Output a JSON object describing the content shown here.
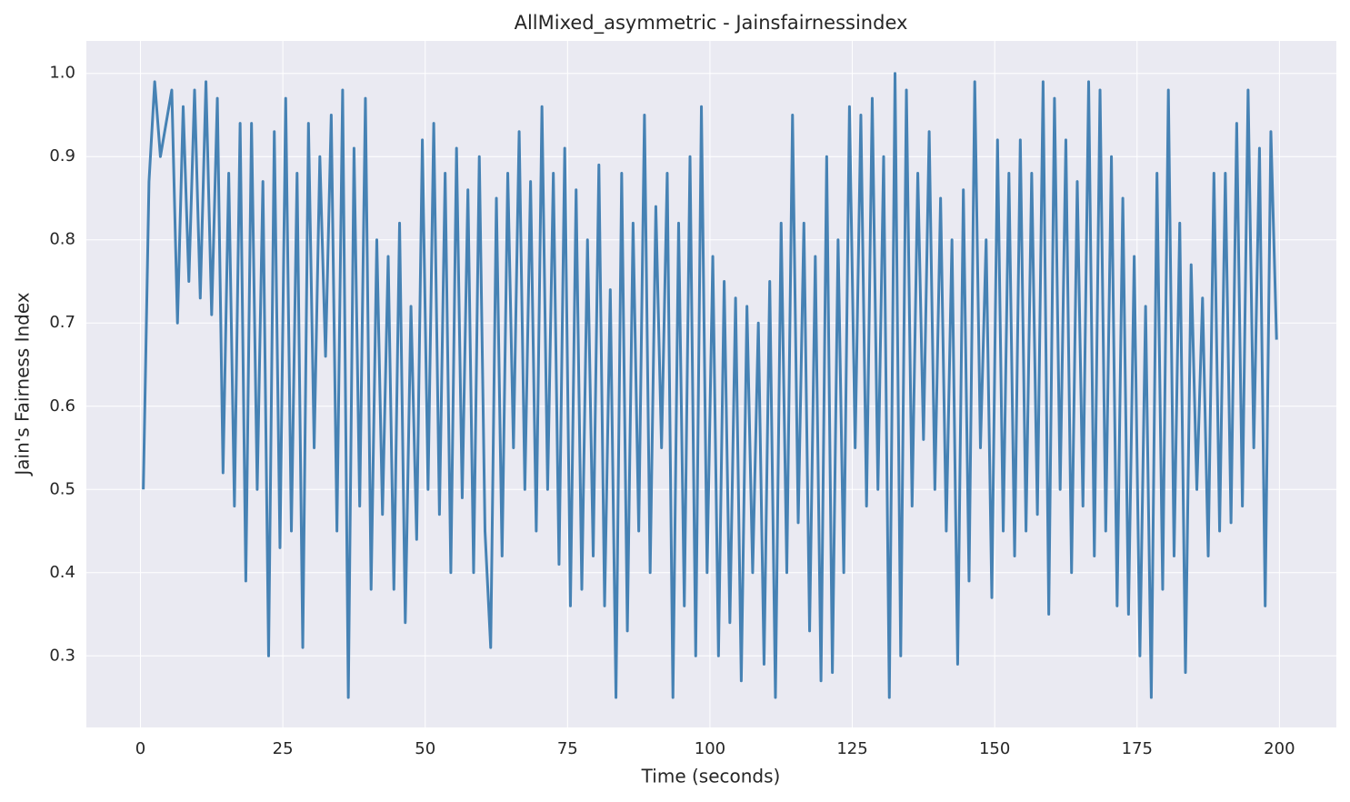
{
  "chart_data": {
    "type": "line",
    "title": "AllMixed_asymmetric - Jainsfairnessindex",
    "x_label": "Time (seconds)",
    "y_label": "Jain's Fairness Index",
    "color": "#4682b4",
    "grid": true,
    "xlim": [
      -9.5,
      210
    ],
    "ylim": [
      0.214,
      1.039
    ],
    "xticks": [
      0,
      25,
      50,
      75,
      100,
      125,
      150,
      175,
      200
    ],
    "yticks": [
      0.3,
      0.4,
      0.5,
      0.6,
      0.7,
      0.8,
      0.9,
      {
        "value": 1,
        "label": "1.0"
      }
    ],
    "x": [
      0.5,
      1.5,
      2.5,
      3.5,
      4.5,
      5.5,
      6.5,
      7.5,
      8.5,
      9.5,
      10.5,
      11.5,
      12.5,
      13.5,
      14.5,
      15.5,
      16.5,
      17.5,
      18.5,
      19.5,
      20.5,
      21.5,
      22.5,
      23.5,
      24.5,
      25.5,
      26.5,
      27.5,
      28.5,
      29.5,
      30.5,
      31.5,
      32.5,
      33.5,
      34.5,
      35.5,
      36.5,
      37.5,
      38.5,
      39.5,
      40.5,
      41.5,
      42.5,
      43.5,
      44.5,
      45.5,
      46.5,
      47.5,
      48.5,
      49.5,
      50.5,
      51.5,
      52.5,
      53.5,
      54.5,
      55.5,
      56.5,
      57.5,
      58.5,
      59.5,
      60.5,
      61.5,
      62.5,
      63.5,
      64.5,
      65.5,
      66.5,
      67.5,
      68.5,
      69.5,
      70.5,
      71.5,
      72.5,
      73.5,
      74.5,
      75.5,
      76.5,
      77.5,
      78.5,
      79.5,
      80.5,
      81.5,
      82.5,
      83.5,
      84.5,
      85.5,
      86.5,
      87.5,
      88.5,
      89.5,
      90.5,
      91.5,
      92.5,
      93.5,
      94.5,
      95.5,
      96.5,
      97.5,
      98.5,
      99.5,
      100.5,
      101.5,
      102.5,
      103.5,
      104.5,
      105.5,
      106.5,
      107.5,
      108.5,
      109.5,
      110.5,
      111.5,
      112.5,
      113.5,
      114.5,
      115.5,
      116.5,
      117.5,
      118.5,
      119.5,
      120.5,
      121.5,
      122.5,
      123.5,
      124.5,
      125.5,
      126.5,
      127.5,
      128.5,
      129.5,
      130.5,
      131.5,
      132.5,
      133.5,
      134.5,
      135.5,
      136.5,
      137.5,
      138.5,
      139.5,
      140.5,
      141.5,
      142.5,
      143.5,
      144.5,
      145.5,
      146.5,
      147.5,
      148.5,
      149.5,
      150.5,
      151.5,
      152.5,
      153.5,
      154.5,
      155.5,
      156.5,
      157.5,
      158.5,
      159.5,
      160.5,
      161.5,
      162.5,
      163.5,
      164.5,
      165.5,
      166.5,
      167.5,
      168.5,
      169.5,
      170.5,
      171.5,
      172.5,
      173.5,
      174.5,
      175.5,
      176.5,
      177.5,
      178.5,
      179.5,
      180.5,
      181.5,
      182.5,
      183.5,
      184.5,
      185.5,
      186.5,
      187.5,
      188.5,
      189.5,
      190.5,
      191.5,
      192.5,
      193.5,
      194.5,
      195.5,
      196.5,
      197.5,
      198.5,
      199.5
    ],
    "values": [
      0.5,
      0.87,
      0.99,
      0.9,
      0.94,
      0.98,
      0.7,
      0.96,
      0.75,
      0.98,
      0.73,
      0.99,
      0.71,
      0.97,
      0.52,
      0.88,
      0.48,
      0.94,
      0.39,
      0.94,
      0.5,
      0.87,
      0.3,
      0.93,
      0.43,
      0.97,
      0.45,
      0.88,
      0.31,
      0.94,
      0.55,
      0.9,
      0.66,
      0.95,
      0.45,
      0.98,
      0.25,
      0.91,
      0.48,
      0.97,
      0.38,
      0.8,
      0.47,
      0.78,
      0.38,
      0.82,
      0.34,
      0.72,
      0.44,
      0.92,
      0.5,
      0.94,
      0.47,
      0.88,
      0.4,
      0.91,
      0.49,
      0.86,
      0.4,
      0.9,
      0.45,
      0.31,
      0.85,
      0.42,
      0.88,
      0.55,
      0.93,
      0.5,
      0.87,
      0.45,
      0.96,
      0.5,
      0.88,
      0.41,
      0.91,
      0.36,
      0.86,
      0.38,
      0.8,
      0.42,
      0.89,
      0.36,
      0.74,
      0.25,
      0.88,
      0.33,
      0.82,
      0.45,
      0.95,
      0.4,
      0.84,
      0.55,
      0.88,
      0.25,
      0.82,
      0.36,
      0.9,
      0.3,
      0.96,
      0.4,
      0.78,
      0.3,
      0.75,
      0.34,
      0.73,
      0.27,
      0.72,
      0.4,
      0.7,
      0.29,
      0.75,
      0.25,
      0.82,
      0.4,
      0.95,
      0.46,
      0.82,
      0.33,
      0.78,
      0.27,
      0.9,
      0.28,
      0.8,
      0.4,
      0.96,
      0.55,
      0.95,
      0.48,
      0.97,
      0.5,
      0.9,
      0.25,
      1.0,
      0.3,
      0.98,
      0.48,
      0.88,
      0.56,
      0.93,
      0.5,
      0.85,
      0.45,
      0.8,
      0.29,
      0.86,
      0.39,
      0.99,
      0.55,
      0.8,
      0.37,
      0.92,
      0.45,
      0.88,
      0.42,
      0.92,
      0.45,
      0.88,
      0.47,
      0.99,
      0.35,
      0.97,
      0.5,
      0.92,
      0.4,
      0.87,
      0.48,
      0.99,
      0.42,
      0.98,
      0.45,
      0.9,
      0.36,
      0.85,
      0.35,
      0.78,
      0.3,
      0.72,
      0.25,
      0.88,
      0.38,
      0.98,
      0.42,
      0.82,
      0.28,
      0.77,
      0.5,
      0.73,
      0.42,
      0.88,
      0.45,
      0.88,
      0.46,
      0.94,
      0.48,
      0.98,
      0.55,
      0.91,
      0.36,
      0.93,
      0.68
    ]
  }
}
